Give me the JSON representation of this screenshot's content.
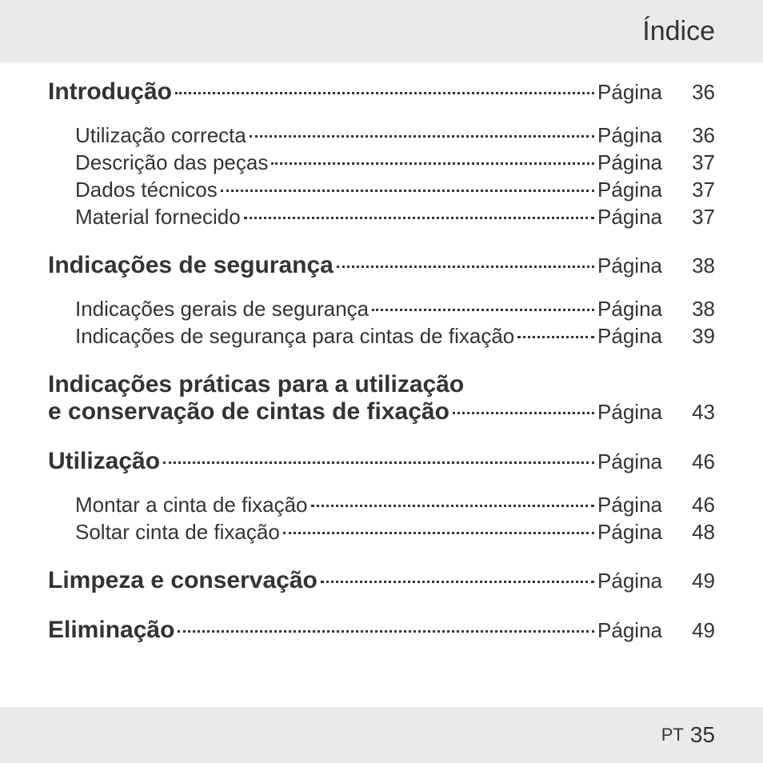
{
  "header": {
    "title": "Índice"
  },
  "page_label": "Página",
  "toc": {
    "sections": [
      {
        "title": "Introdução",
        "page": "36",
        "subs": [
          {
            "title": "Utilização correcta",
            "page": "36"
          },
          {
            "title": "Descrição das peças",
            "page": "37"
          },
          {
            "title": "Dados técnicos",
            "page": "37"
          },
          {
            "title": "Material fornecido",
            "page": "37"
          }
        ]
      },
      {
        "title": "Indicações de segurança",
        "page": "38",
        "subs": [
          {
            "title": "Indicações gerais de segurança",
            "page": "38"
          },
          {
            "title": "Indicações de segurança para cintas de fixação",
            "page": "39"
          }
        ]
      },
      {
        "title_line1": "Indicações práticas para a utilização",
        "title_line2": "e conservação de cintas de fixação",
        "page": "43",
        "multiline": true,
        "subs": []
      },
      {
        "title": "Utilização",
        "page": "46",
        "subs": [
          {
            "title": "Montar a cinta de fixação",
            "page": "46"
          },
          {
            "title": "Soltar cinta de fixação",
            "page": "48"
          }
        ]
      },
      {
        "title": "Limpeza e conservação",
        "page": "49",
        "subs": []
      },
      {
        "title": "Eliminação",
        "page": "49",
        "subs": []
      }
    ]
  },
  "footer": {
    "lang": "PT",
    "page": "35"
  },
  "style": {
    "background_color": "#ffffff",
    "band_color": "#eaeaea",
    "text_color": "#333333",
    "main_fontsize": 30,
    "sub_fontsize": 26,
    "header_fontsize": 34,
    "footer_lang_fontsize": 22,
    "footer_page_fontsize": 28,
    "sub_indent": 34
  }
}
